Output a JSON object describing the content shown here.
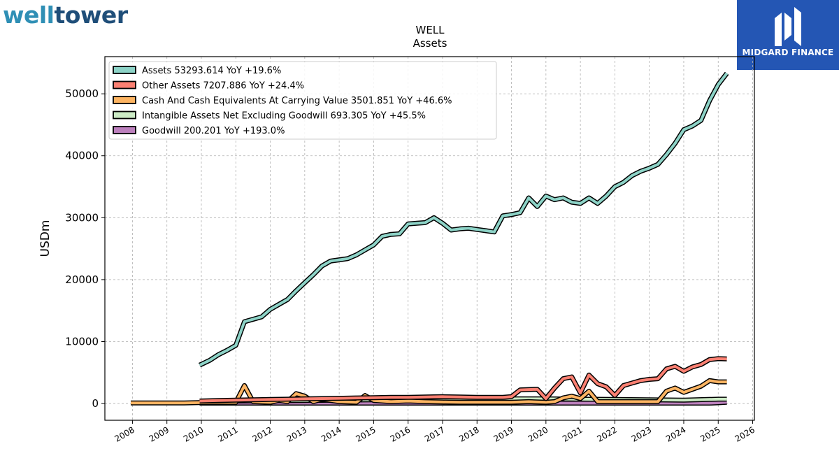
{
  "branding": {
    "left_logo_part1": "well",
    "left_logo_part2": "tower",
    "right_logo_text": "MIDGARD FINANCE"
  },
  "chart_data": {
    "type": "line",
    "title": "WELL",
    "subtitle": "Assets",
    "ylabel": "USDm",
    "xlabel": "",
    "xlim": [
      2007.2,
      2026.05
    ],
    "ylim": [
      -2700,
      56000
    ],
    "x_ticks": [
      2008,
      2009,
      2010,
      2011,
      2012,
      2013,
      2014,
      2015,
      2016,
      2017,
      2018,
      2019,
      2020,
      2021,
      2022,
      2023,
      2024,
      2025,
      2026
    ],
    "x_tick_labels": [
      "2008",
      "2009",
      "2010",
      "2011",
      "2012",
      "2013",
      "2014",
      "2015",
      "2016",
      "2017",
      "2018",
      "2019",
      "2020",
      "2021",
      "2022",
      "2023",
      "2024",
      "2025",
      "2026"
    ],
    "y_ticks": [
      0,
      10000,
      20000,
      30000,
      40000,
      50000
    ],
    "y_tick_labels": [
      "0",
      "10000",
      "20000",
      "30000",
      "40000",
      "50000"
    ],
    "grid": true,
    "legend_position": "top-left",
    "series": [
      {
        "name": "Assets  53293.614 YoY +19.6%",
        "color": "#8dd3c7",
        "x": [
          2009.95,
          2010.25,
          2010.5,
          2010.75,
          2011.0,
          2011.25,
          2011.5,
          2011.75,
          2012.0,
          2012.25,
          2012.5,
          2012.75,
          2013.0,
          2013.25,
          2013.5,
          2013.75,
          2014.0,
          2014.25,
          2014.5,
          2014.75,
          2015.0,
          2015.25,
          2015.5,
          2015.75,
          2016.0,
          2016.25,
          2016.5,
          2016.75,
          2017.0,
          2017.25,
          2017.5,
          2017.75,
          2018.0,
          2018.25,
          2018.5,
          2018.75,
          2019.0,
          2019.25,
          2019.5,
          2019.75,
          2020.0,
          2020.25,
          2020.5,
          2020.75,
          2021.0,
          2021.25,
          2021.5,
          2021.75,
          2022.0,
          2022.25,
          2022.5,
          2022.75,
          2023.0,
          2023.25,
          2023.5,
          2023.75,
          2024.0,
          2024.25,
          2024.5,
          2024.75,
          2025.0,
          2025.25
        ],
        "y": [
          6200,
          7000,
          7900,
          8600,
          9400,
          13200,
          13600,
          14000,
          15200,
          16000,
          16800,
          18200,
          19500,
          20800,
          22200,
          23000,
          23200,
          23400,
          24000,
          24800,
          25600,
          27000,
          27300,
          27400,
          29000,
          29100,
          29200,
          30000,
          29100,
          28000,
          28200,
          28300,
          28100,
          27900,
          27700,
          30300,
          30500,
          30800,
          33200,
          31800,
          33500,
          32900,
          33200,
          32500,
          32300,
          33200,
          32300,
          33500,
          35000,
          35700,
          36800,
          37500,
          38000,
          38600,
          40200,
          42000,
          44200,
          44800,
          45700,
          48900,
          51500,
          53300
        ]
      },
      {
        "name": "Other Assets  7207.886 YoY +24.4%",
        "color": "#fb8072",
        "x": [
          2009.95,
          2010.5,
          2011.0,
          2011.5,
          2012.0,
          2012.5,
          2013.0,
          2013.5,
          2014.0,
          2014.5,
          2015.0,
          2015.5,
          2016.0,
          2016.5,
          2017.0,
          2017.5,
          2018.0,
          2018.5,
          2018.75,
          2019.0,
          2019.25,
          2019.5,
          2019.75,
          2020.0,
          2020.25,
          2020.5,
          2020.75,
          2021.0,
          2021.25,
          2021.5,
          2021.75,
          2022.0,
          2022.25,
          2022.5,
          2022.75,
          2023.0,
          2023.25,
          2023.5,
          2023.75,
          2024.0,
          2024.25,
          2024.5,
          2024.75,
          2025.0,
          2025.25
        ],
        "y": [
          400,
          500,
          550,
          600,
          650,
          700,
          750,
          800,
          850,
          900,
          950,
          1000,
          1000,
          1050,
          1100,
          1050,
          1000,
          1000,
          1000,
          1100,
          2200,
          2250,
          2300,
          800,
          2500,
          4000,
          4300,
          1700,
          4600,
          3200,
          2700,
          1300,
          2900,
          3300,
          3700,
          3900,
          4000,
          5600,
          6000,
          5200,
          5900,
          6300,
          7100,
          7250,
          7200
        ]
      },
      {
        "name": "Cash And Cash Equivalents At Carrying Value  3501.851 YoY +46.6%",
        "color": "#fdb462",
        "x": [
          2007.95,
          2008.5,
          2009.0,
          2009.5,
          2009.95,
          2010.5,
          2011.0,
          2011.25,
          2011.5,
          2012.0,
          2012.25,
          2012.5,
          2012.75,
          2013.0,
          2013.25,
          2013.5,
          2014.0,
          2014.5,
          2014.75,
          2015.0,
          2015.5,
          2016.0,
          2016.5,
          2017.0,
          2017.5,
          2018.0,
          2018.5,
          2019.0,
          2019.5,
          2020.0,
          2020.25,
          2020.5,
          2020.75,
          2021.0,
          2021.25,
          2021.5,
          2022.0,
          2022.5,
          2023.0,
          2023.25,
          2023.5,
          2023.75,
          2024.0,
          2024.5,
          2024.75,
          2025.0,
          2025.25
        ],
        "y": [
          100,
          100,
          100,
          100,
          150,
          200,
          200,
          2900,
          300,
          200,
          500,
          300,
          1600,
          1200,
          300,
          700,
          300,
          200,
          1300,
          500,
          300,
          400,
          300,
          250,
          200,
          200,
          200,
          200,
          300,
          200,
          300,
          900,
          1200,
          800,
          2000,
          300,
          300,
          300,
          300,
          300,
          2000,
          2500,
          1800,
          2800,
          3700,
          3500,
          3500
        ]
      },
      {
        "name": "Intangible Assets Net Excluding Goodwill  693.305 YoY +45.5%",
        "color": "#ccebc5",
        "x": [
          2009.95,
          2011.0,
          2012.0,
          2013.0,
          2014.0,
          2015.0,
          2016.0,
          2017.0,
          2018.0,
          2019.0,
          2020.0,
          2021.0,
          2022.0,
          2023.0,
          2024.0,
          2025.0,
          2025.25
        ],
        "y": [
          300,
          400,
          450,
          500,
          550,
          600,
          650,
          700,
          700,
          750,
          750,
          700,
          650,
          600,
          550,
          700,
          700
        ]
      },
      {
        "name": "Goodwill  200.201 YoY +193.0%",
        "color": "#bc80bd",
        "x": [
          2009.95,
          2011.0,
          2012.0,
          2013.0,
          2014.0,
          2015.0,
          2016.0,
          2017.0,
          2018.0,
          2019.0,
          2020.0,
          2021.0,
          2022.0,
          2023.0,
          2024.0,
          2024.75,
          2025.0,
          2025.25
        ],
        "y": [
          68,
          68,
          68,
          68,
          68,
          68,
          68,
          68,
          68,
          68,
          68,
          68,
          68,
          68,
          68,
          68,
          120,
          200
        ]
      }
    ]
  }
}
